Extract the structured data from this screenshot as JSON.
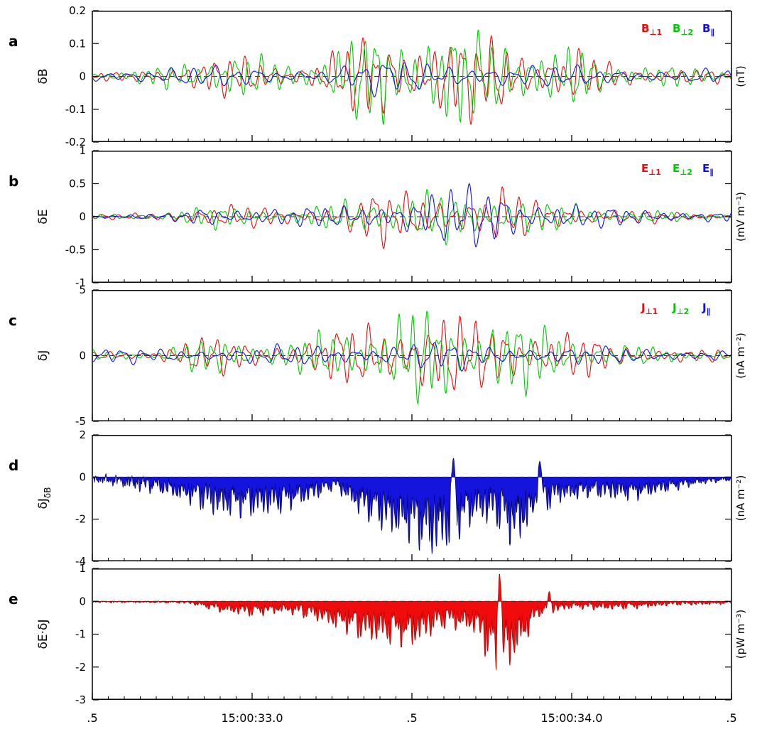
{
  "chart_data": {
    "type": "line",
    "title": "",
    "xaxis": {
      "tick_labels": [
        ".5",
        "15:00:33.0",
        ".5",
        "15:00:34.0",
        ".5"
      ],
      "tick_positions": [
        0,
        0.25,
        0.5,
        0.75,
        1
      ],
      "minor_tick_step": 0.025
    },
    "zero_line_color": "#333333",
    "envelopes": {
      "main": [
        [
          0,
          0.1
        ],
        [
          0.05,
          0.09
        ],
        [
          0.09,
          0.15
        ],
        [
          0.13,
          0.3
        ],
        [
          0.18,
          0.42
        ],
        [
          0.23,
          0.4
        ],
        [
          0.28,
          0.33
        ],
        [
          0.33,
          0.3
        ],
        [
          0.37,
          0.48
        ],
        [
          0.41,
          0.75
        ],
        [
          0.45,
          0.95
        ],
        [
          0.49,
          0.88
        ],
        [
          0.53,
          1
        ],
        [
          0.57,
          0.88
        ],
        [
          0.61,
          0.78
        ],
        [
          0.64,
          0.95
        ],
        [
          0.68,
          0.7
        ],
        [
          0.72,
          0.48
        ],
        [
          0.76,
          0.55
        ],
        [
          0.8,
          0.32
        ],
        [
          0.85,
          0.24
        ],
        [
          0.9,
          0.2
        ],
        [
          0.95,
          0.15
        ],
        [
          1,
          0.12
        ]
      ],
      "flat_blue": [
        [
          0,
          0.45
        ],
        [
          0.2,
          0.55
        ],
        [
          0.35,
          0.5
        ],
        [
          0.45,
          0.95
        ],
        [
          0.5,
          0.85
        ],
        [
          0.55,
          1
        ],
        [
          0.6,
          0.8
        ],
        [
          0.7,
          0.6
        ],
        [
          0.8,
          0.5
        ],
        [
          1,
          0.45
        ]
      ],
      "b_blue": [
        [
          0,
          0.06
        ],
        [
          0.12,
          0.08
        ],
        [
          0.18,
          0.35
        ],
        [
          0.25,
          0.3
        ],
        [
          0.32,
          0.25
        ],
        [
          0.4,
          0.35
        ],
        [
          0.48,
          0.6
        ],
        [
          0.54,
          0.75
        ],
        [
          0.58,
          0.85
        ],
        [
          0.62,
          1
        ],
        [
          0.65,
          0.95
        ],
        [
          0.7,
          0.5
        ],
        [
          0.78,
          0.3
        ],
        [
          0.85,
          0.25
        ],
        [
          0.92,
          0.2
        ],
        [
          1,
          0.18
        ]
      ],
      "c_green": [
        [
          0,
          0.1
        ],
        [
          0.1,
          0.12
        ],
        [
          0.15,
          0.3
        ],
        [
          0.2,
          0.35
        ],
        [
          0.3,
          0.3
        ],
        [
          0.38,
          0.5
        ],
        [
          0.45,
          0.8
        ],
        [
          0.5,
          1
        ],
        [
          0.55,
          0.8
        ],
        [
          0.6,
          0.7
        ],
        [
          0.63,
          1
        ],
        [
          0.66,
          0.8
        ],
        [
          0.7,
          0.6
        ],
        [
          0.75,
          0.4
        ],
        [
          0.8,
          0.25
        ],
        [
          0.9,
          0.15
        ],
        [
          1,
          0.1
        ]
      ],
      "c_blue": [
        [
          0,
          0.5
        ],
        [
          0.2,
          0.6
        ],
        [
          0.4,
          0.8
        ],
        [
          0.5,
          1
        ],
        [
          0.6,
          0.9
        ],
        [
          0.7,
          0.7
        ],
        [
          0.85,
          0.55
        ],
        [
          1,
          0.5
        ]
      ],
      "d_neg": [
        [
          0,
          0.1
        ],
        [
          0.05,
          0.15
        ],
        [
          0.1,
          0.22
        ],
        [
          0.15,
          0.35
        ],
        [
          0.2,
          0.5
        ],
        [
          0.25,
          0.5
        ],
        [
          0.3,
          0.45
        ],
        [
          0.35,
          0.28
        ],
        [
          0.38,
          0.15
        ],
        [
          0.42,
          0.5
        ],
        [
          0.46,
          0.7
        ],
        [
          0.5,
          0.82
        ],
        [
          0.53,
          1
        ],
        [
          0.56,
          0.9
        ],
        [
          0.6,
          0.55
        ],
        [
          0.63,
          0.6
        ],
        [
          0.66,
          0.9
        ],
        [
          0.7,
          0.5
        ],
        [
          0.73,
          0.32
        ],
        [
          0.78,
          0.26
        ],
        [
          0.85,
          0.3
        ],
        [
          0.9,
          0.2
        ],
        [
          0.95,
          0.1
        ],
        [
          1,
          0.06
        ]
      ],
      "d_pos": [
        [
          0,
          1
        ],
        [
          0.08,
          0.9
        ],
        [
          0.15,
          0.5
        ],
        [
          0.3,
          0.25
        ],
        [
          0.5,
          0.15
        ],
        [
          0.7,
          0.35
        ],
        [
          0.8,
          0.3
        ],
        [
          1,
          0.25
        ]
      ],
      "e_neg": [
        [
          0,
          0.02
        ],
        [
          0.15,
          0.03
        ],
        [
          0.2,
          0.15
        ],
        [
          0.25,
          0.2
        ],
        [
          0.3,
          0.15
        ],
        [
          0.35,
          0.25
        ],
        [
          0.42,
          0.5
        ],
        [
          0.46,
          0.55
        ],
        [
          0.5,
          0.6
        ],
        [
          0.55,
          0.35
        ],
        [
          0.6,
          0.42
        ],
        [
          0.63,
          1
        ],
        [
          0.66,
          0.8
        ],
        [
          0.68,
          0.5
        ],
        [
          0.7,
          0.2
        ],
        [
          0.75,
          0.1
        ],
        [
          0.8,
          0.12
        ],
        [
          0.85,
          0.1
        ],
        [
          0.9,
          0.06
        ],
        [
          1,
          0.04
        ]
      ],
      "e_pos": [
        [
          0,
          0.3
        ],
        [
          0.2,
          0.3
        ],
        [
          0.4,
          0.2
        ],
        [
          0.6,
          0.3
        ],
        [
          0.75,
          0.5
        ],
        [
          0.85,
          0.4
        ],
        [
          1,
          0.3
        ]
      ]
    },
    "panels": [
      {
        "letter": "a",
        "ylabel": {
          "main": "δB",
          "sub": ""
        },
        "unit": "(nT)",
        "ylim": [
          -0.2,
          0.2
        ],
        "yticks": [
          -0.2,
          -0.1,
          0,
          0.1,
          0.2
        ],
        "ytick_labels": [
          "-0.2",
          "-0.1",
          "0",
          "0.1",
          "0.2"
        ],
        "kind": "lines",
        "legend": [
          {
            "main": "B",
            "sub": "⊥1",
            "color": "#e80c0c"
          },
          {
            "main": "B",
            "sub": "⊥2",
            "color": "#00c800"
          },
          {
            "main": "B",
            "sub": "∥",
            "color": "#0f0fe8"
          }
        ],
        "series": [
          {
            "name": "B⊥1",
            "color": "#e80c0c",
            "amp": 0.165,
            "freq": 44,
            "seed": 3,
            "envelope": "main"
          },
          {
            "name": "B⊥2",
            "color": "#00c800",
            "amp": 0.185,
            "freq": 50,
            "seed": 7,
            "envelope": "main"
          },
          {
            "name": "B∥",
            "color": "#0f0fe8",
            "amp": 0.065,
            "freq": 30,
            "seed": 11,
            "envelope": "flat_blue"
          }
        ]
      },
      {
        "letter": "b",
        "ylabel": {
          "main": "δE",
          "sub": ""
        },
        "unit": "(mV m⁻¹)",
        "ylim": [
          -1,
          1
        ],
        "yticks": [
          -1,
          -0.5,
          0,
          0.5,
          1
        ],
        "ytick_labels": [
          "-1",
          "-0.5",
          "0",
          "0.5",
          "1"
        ],
        "kind": "lines",
        "legend": [
          {
            "main": "E",
            "sub": "⊥1",
            "color": "#e80c0c"
          },
          {
            "main": "E",
            "sub": "⊥2",
            "color": "#00c800"
          },
          {
            "main": "E",
            "sub": "∥",
            "color": "#0f0fe8"
          }
        ],
        "series": [
          {
            "name": "E⊥1",
            "color": "#e80c0c",
            "amp": 0.5,
            "freq": 40,
            "seed": 13,
            "envelope": "main"
          },
          {
            "name": "E⊥2",
            "color": "#00c800",
            "amp": 0.45,
            "freq": 47,
            "seed": 17,
            "envelope": "main"
          },
          {
            "name": "E∥",
            "color": "#0f0fe8",
            "amp": 0.62,
            "freq": 36,
            "seed": 19,
            "envelope": "b_blue"
          }
        ]
      },
      {
        "letter": "c",
        "ylabel": {
          "main": "δJ",
          "sub": ""
        },
        "unit": "(nA m⁻²)",
        "ylim": [
          -5,
          5
        ],
        "yticks": [
          -5,
          0,
          5
        ],
        "ytick_labels": [
          "-5",
          "0",
          "5"
        ],
        "kind": "lines",
        "legend": [
          {
            "main": "J",
            "sub": "⊥1",
            "color": "#e80c0c"
          },
          {
            "main": "J",
            "sub": "⊥2",
            "color": "#00c800"
          },
          {
            "main": "J",
            "sub": "∥",
            "color": "#0f0fe8"
          }
        ],
        "series": [
          {
            "name": "J⊥1",
            "color": "#e80c0c",
            "amp": 3.9,
            "freq": 42,
            "seed": 23,
            "envelope": "main"
          },
          {
            "name": "J⊥2",
            "color": "#00c800",
            "amp": 4.3,
            "freq": 48,
            "seed": 29,
            "envelope": "c_green"
          },
          {
            "name": "J∥",
            "color": "#0f0fe8",
            "amp": 1.25,
            "freq": 33,
            "seed": 31,
            "envelope": "c_blue"
          }
        ]
      },
      {
        "letter": "d",
        "ylabel": {
          "main": "δJ",
          "sub": "δB"
        },
        "unit": "(nA m⁻²)",
        "ylim": [
          -4,
          2
        ],
        "yticks": [
          -4,
          -2,
          0,
          2
        ],
        "ytick_labels": [
          "-4",
          "-2",
          "0",
          "2"
        ],
        "kind": "fill",
        "fill": {
          "color": "#1414dc",
          "stroke": "#000064",
          "amp": 3.9,
          "freq": 70,
          "seed": 37,
          "envelope": "d_neg",
          "pos_amp": 0.45,
          "pos_envelope": "d_pos",
          "spikes": [
            {
              "t": 0.565,
              "h": 0.9,
              "w": 0.004
            },
            {
              "t": 0.7,
              "h": 0.75,
              "w": 0.004
            }
          ]
        }
      },
      {
        "letter": "e",
        "ylabel": {
          "main": "δE·δJ",
          "sub": ""
        },
        "unit": "(pW m⁻³)",
        "ylim": [
          -3,
          1
        ],
        "yticks": [
          -3,
          -2,
          -1,
          0,
          1
        ],
        "ytick_labels": [
          "-3",
          "-2",
          "-1",
          "0",
          "1"
        ],
        "kind": "fill",
        "fill": {
          "color": "#f00c0c",
          "stroke": "#b00000",
          "amp": 2.4,
          "freq": 65,
          "seed": 41,
          "envelope": "e_neg",
          "pos_amp": 0.12,
          "pos_envelope": "e_pos",
          "spikes": [
            {
              "t": 0.637,
              "h": 0.85,
              "w": 0.0035
            },
            {
              "t": 0.715,
              "h": 0.3,
              "w": 0.003
            }
          ]
        }
      }
    ]
  }
}
